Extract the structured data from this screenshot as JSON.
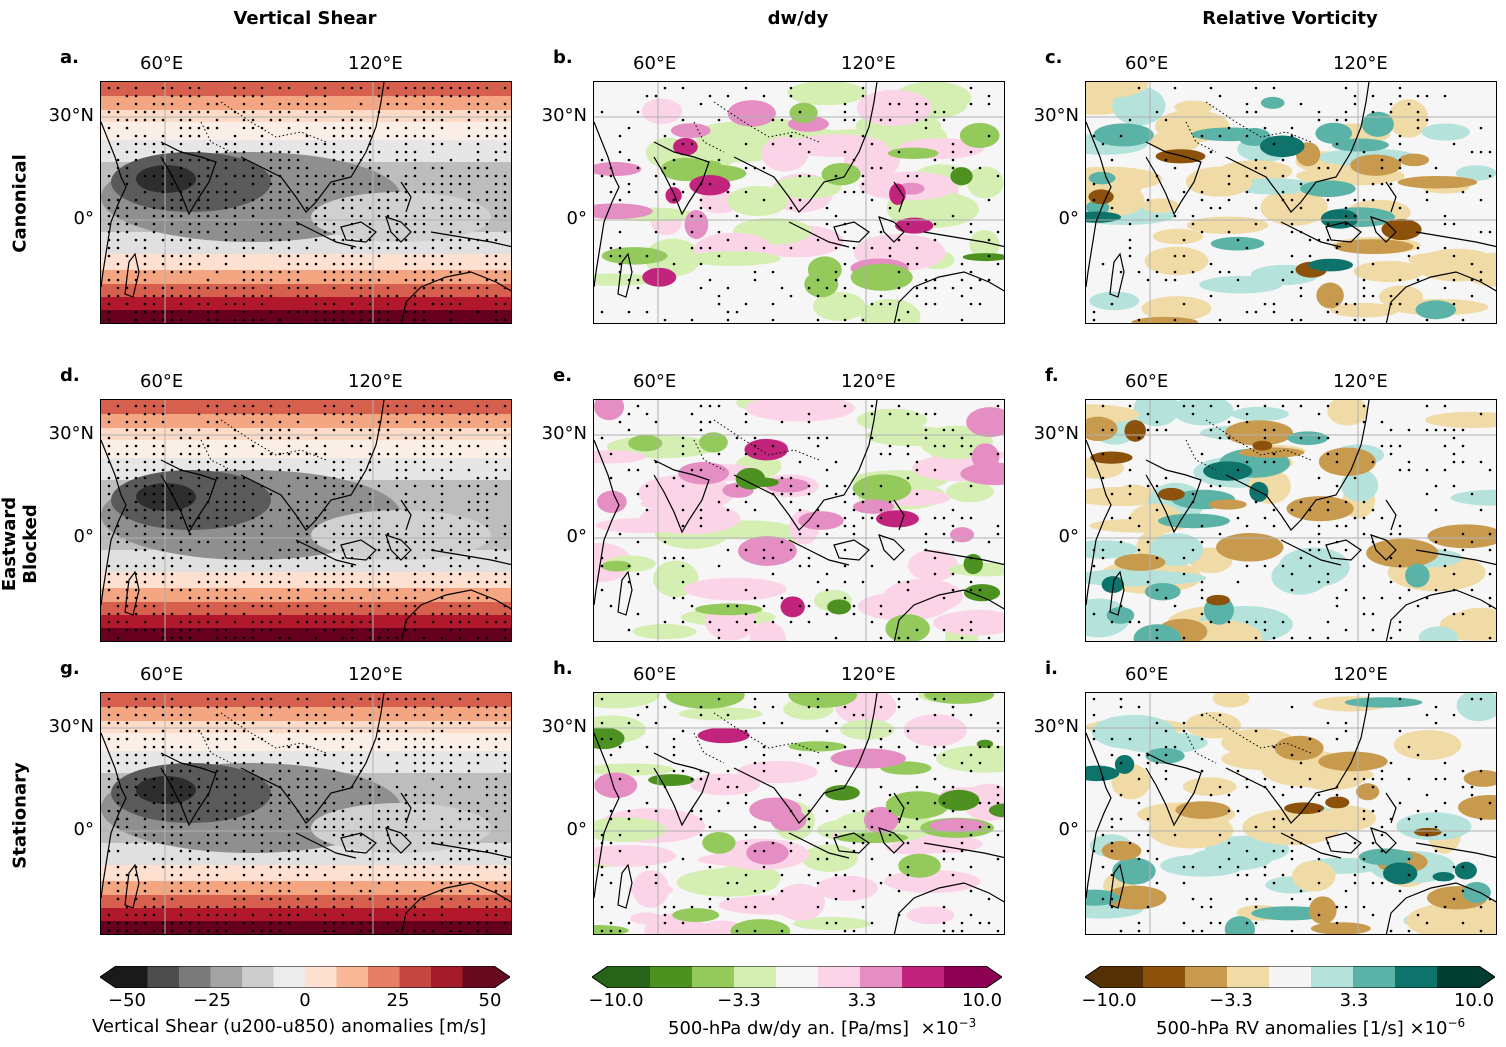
{
  "columns": {
    "shear": "Vertical Shear",
    "dwdy": "dw/dy",
    "rv": "Relative Vorticity"
  },
  "rows": {
    "canonical": "Canonical",
    "eastward": "Eastward Blocked",
    "stationary": "Stationary"
  },
  "panels": {
    "a": "a.",
    "b": "b.",
    "c": "c.",
    "d": "d.",
    "e": "e.",
    "f": "f.",
    "g": "g.",
    "h": "h.",
    "i": "i."
  },
  "axes": {
    "lon1": "60°E",
    "lon2": "120°E",
    "lat1": "30°N",
    "lat2": "0°"
  },
  "colorbars": {
    "shear": {
      "ticks": [
        "−50",
        "−25",
        "0",
        "25",
        "50"
      ],
      "label": "Vertical Shear (u200-u850) anomalies [m/s]",
      "colors": [
        "#1a1a1a",
        "#4d4d4d",
        "#7a7a7a",
        "#a3a3a3",
        "#cccccc",
        "#ececec",
        "#fde0d0",
        "#f8b797",
        "#e58066",
        "#c64742",
        "#a41c2a",
        "#670a1f"
      ]
    },
    "dwdy": {
      "ticks": [
        "−10.0",
        "−3.3",
        "3.3",
        "10.0"
      ],
      "label": "500-hPa dw/dy an. [Pa/ms]",
      "multiplier": "×10",
      "exponent": "−3",
      "colors": [
        "#276419",
        "#4d9221",
        "#94c95b",
        "#d5efb3",
        "#f7f7f7",
        "#fbd4e7",
        "#e48ec3",
        "#c2237c",
        "#8e0152"
      ]
    },
    "rv": {
      "ticks": [
        "−10.0",
        "−3.3",
        "3.3",
        "10.0"
      ],
      "label": "500-hPa RV anomalies [1/s]",
      "multiplier": "×10",
      "exponent": "−6",
      "colors": [
        "#543005",
        "#8c510a",
        "#c89a4e",
        "#f0dba6",
        "#f5f5f5",
        "#b5e3dc",
        "#5bb3a7",
        "#0d736b",
        "#003c30"
      ]
    }
  }
}
